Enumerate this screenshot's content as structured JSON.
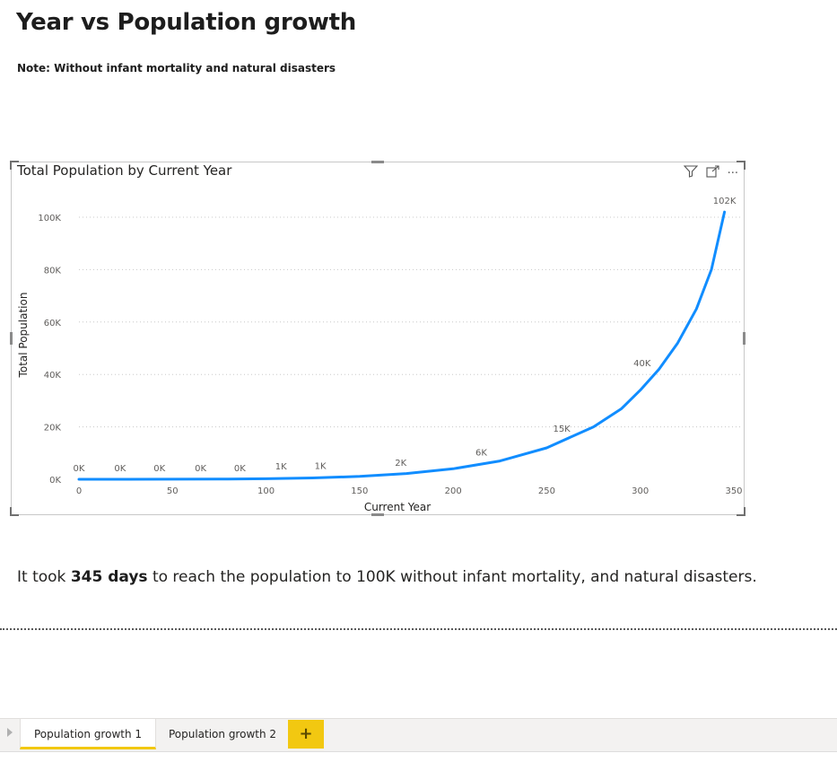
{
  "page": {
    "title": "Year vs Population growth",
    "note": "Note: Without infant mortality and natural disasters",
    "caption_prefix": "It took ",
    "caption_bold": "345 days",
    "caption_suffix": " to reach the population to 100K without infant mortality, and natural disasters."
  },
  "visual": {
    "title": "Total Population by Current Year",
    "icons": [
      "filter-icon",
      "focus-mode-icon",
      "more-options-icon"
    ],
    "more_label": "···"
  },
  "chart_data": {
    "type": "line",
    "title": "Total Population by Current Year",
    "xlabel": "Current Year",
    "ylabel": "Total Population",
    "xlim": [
      0,
      350
    ],
    "ylim": [
      0,
      100000
    ],
    "x_ticks": [
      "0",
      "50",
      "100",
      "150",
      "200",
      "250",
      "300",
      "350"
    ],
    "y_ticks": [
      "0K",
      "20K",
      "40K",
      "60K",
      "80K",
      "100K"
    ],
    "grid": true,
    "line_color": "#118dff",
    "curve": {
      "start_x": 0,
      "end_x": 345,
      "start_y": 0,
      "end_y": 102000,
      "points": [
        {
          "x": 0,
          "y": 0
        },
        {
          "x": 25,
          "y": 10
        },
        {
          "x": 50,
          "y": 30
        },
        {
          "x": 75,
          "y": 80
        },
        {
          "x": 100,
          "y": 200
        },
        {
          "x": 125,
          "y": 500
        },
        {
          "x": 150,
          "y": 1100
        },
        {
          "x": 175,
          "y": 2200
        },
        {
          "x": 200,
          "y": 4000
        },
        {
          "x": 225,
          "y": 7000
        },
        {
          "x": 250,
          "y": 12000
        },
        {
          "x": 275,
          "y": 20000
        },
        {
          "x": 290,
          "y": 27000
        },
        {
          "x": 300,
          "y": 34000
        },
        {
          "x": 310,
          "y": 42000
        },
        {
          "x": 320,
          "y": 52000
        },
        {
          "x": 330,
          "y": 65000
        },
        {
          "x": 338,
          "y": 80000
        },
        {
          "x": 345,
          "y": 102000
        }
      ]
    },
    "data_labels": [
      {
        "x": 0,
        "y": 0,
        "label": "0K"
      },
      {
        "x": 22,
        "y": 0,
        "label": "0K"
      },
      {
        "x": 43,
        "y": 0,
        "label": "0K"
      },
      {
        "x": 65,
        "y": 0,
        "label": "0K"
      },
      {
        "x": 86,
        "y": 0,
        "label": "0K"
      },
      {
        "x": 108,
        "y": 600,
        "label": "1K"
      },
      {
        "x": 129,
        "y": 900,
        "label": "1K"
      },
      {
        "x": 172,
        "y": 2000,
        "label": "2K"
      },
      {
        "x": 215,
        "y": 6000,
        "label": "6K"
      },
      {
        "x": 258,
        "y": 15000,
        "label": "15K"
      },
      {
        "x": 301,
        "y": 40000,
        "label": "40K"
      },
      {
        "x": 345,
        "y": 102000,
        "label": "102K"
      }
    ]
  },
  "tabs": [
    {
      "label": "Population growth 1",
      "active": true
    },
    {
      "label": "Population growth 2",
      "active": false
    }
  ],
  "add_tab_label": "+"
}
